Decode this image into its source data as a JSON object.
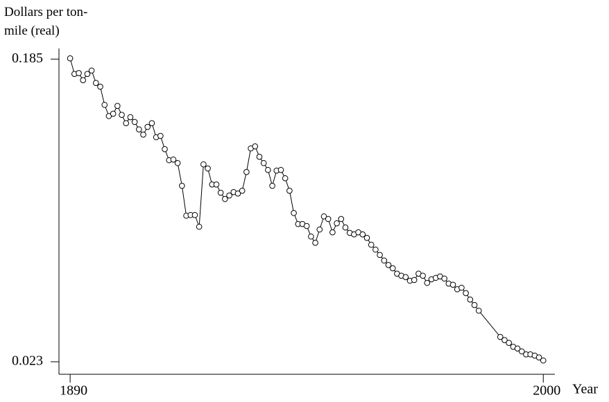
{
  "chart_data": {
    "type": "line",
    "y_label": "Dollars per ton-mile (real)",
    "x_label": "Year",
    "x": [
      1890,
      1891,
      1892,
      1893,
      1894,
      1895,
      1896,
      1897,
      1898,
      1899,
      1900,
      1901,
      1902,
      1903,
      1904,
      1905,
      1906,
      1907,
      1908,
      1909,
      1910,
      1911,
      1912,
      1913,
      1914,
      1915,
      1916,
      1917,
      1918,
      1919,
      1920,
      1921,
      1922,
      1923,
      1924,
      1925,
      1926,
      1927,
      1928,
      1929,
      1930,
      1931,
      1932,
      1933,
      1934,
      1935,
      1936,
      1937,
      1938,
      1939,
      1940,
      1941,
      1942,
      1943,
      1944,
      1945,
      1946,
      1947,
      1948,
      1949,
      1950,
      1951,
      1952,
      1953,
      1954,
      1955,
      1956,
      1957,
      1958,
      1959,
      1960,
      1961,
      1962,
      1963,
      1964,
      1965,
      1966,
      1967,
      1968,
      1969,
      1970,
      1971,
      1972,
      1973,
      1974,
      1975,
      1976,
      1977,
      1978,
      1979,
      1980,
      1981,
      1982,
      1983,
      1984,
      1985,
      1990,
      1991,
      1992,
      1993,
      1994,
      1995,
      1996,
      1997,
      1998,
      1999,
      2000
    ],
    "series": [
      {
        "color": "#000000",
        "values": [
          0.186,
          0.167,
          0.168,
          0.16,
          0.167,
          0.171,
          0.157,
          0.153,
          0.135,
          0.125,
          0.127,
          0.134,
          0.126,
          0.119,
          0.124,
          0.12,
          0.114,
          0.11,
          0.116,
          0.119,
          0.108,
          0.109,
          0.0995,
          0.0922,
          0.0926,
          0.0904,
          0.0773,
          0.0629,
          0.0632,
          0.0632,
          0.0583,
          0.0896,
          0.0871,
          0.078,
          0.078,
          0.0737,
          0.0706,
          0.0723,
          0.074,
          0.0733,
          0.0747,
          0.085,
          0.1,
          0.1014,
          0.0944,
          0.0904,
          0.0862,
          0.0773,
          0.0858,
          0.0862,
          0.0814,
          0.0747,
          0.0641,
          0.0594,
          0.0594,
          0.0586,
          0.0545,
          0.0522,
          0.0572,
          0.0626,
          0.0615,
          0.0561,
          0.0597,
          0.0615,
          0.058,
          0.0559,
          0.0553,
          0.0561,
          0.0553,
          0.054,
          0.0515,
          0.0498,
          0.048,
          0.0462,
          0.0448,
          0.0438,
          0.0422,
          0.0416,
          0.0412,
          0.0402,
          0.0404,
          0.0422,
          0.0416,
          0.0396,
          0.0406,
          0.041,
          0.0414,
          0.0408,
          0.0394,
          0.0391,
          0.0379,
          0.0383,
          0.0369,
          0.0353,
          0.034,
          0.0327,
          0.0273,
          0.0267,
          0.0262,
          0.0255,
          0.0252,
          0.0247,
          0.0242,
          0.0242,
          0.024,
          0.0237,
          0.0232
        ]
      }
    ],
    "xlim": [
      1887.4,
      2002.7
    ],
    "xticks": [
      1890,
      2000
    ],
    "ylim": [
      0.0211,
      0.199
    ],
    "yticks": [
      0.185,
      0.023
    ],
    "log_y": true
  }
}
